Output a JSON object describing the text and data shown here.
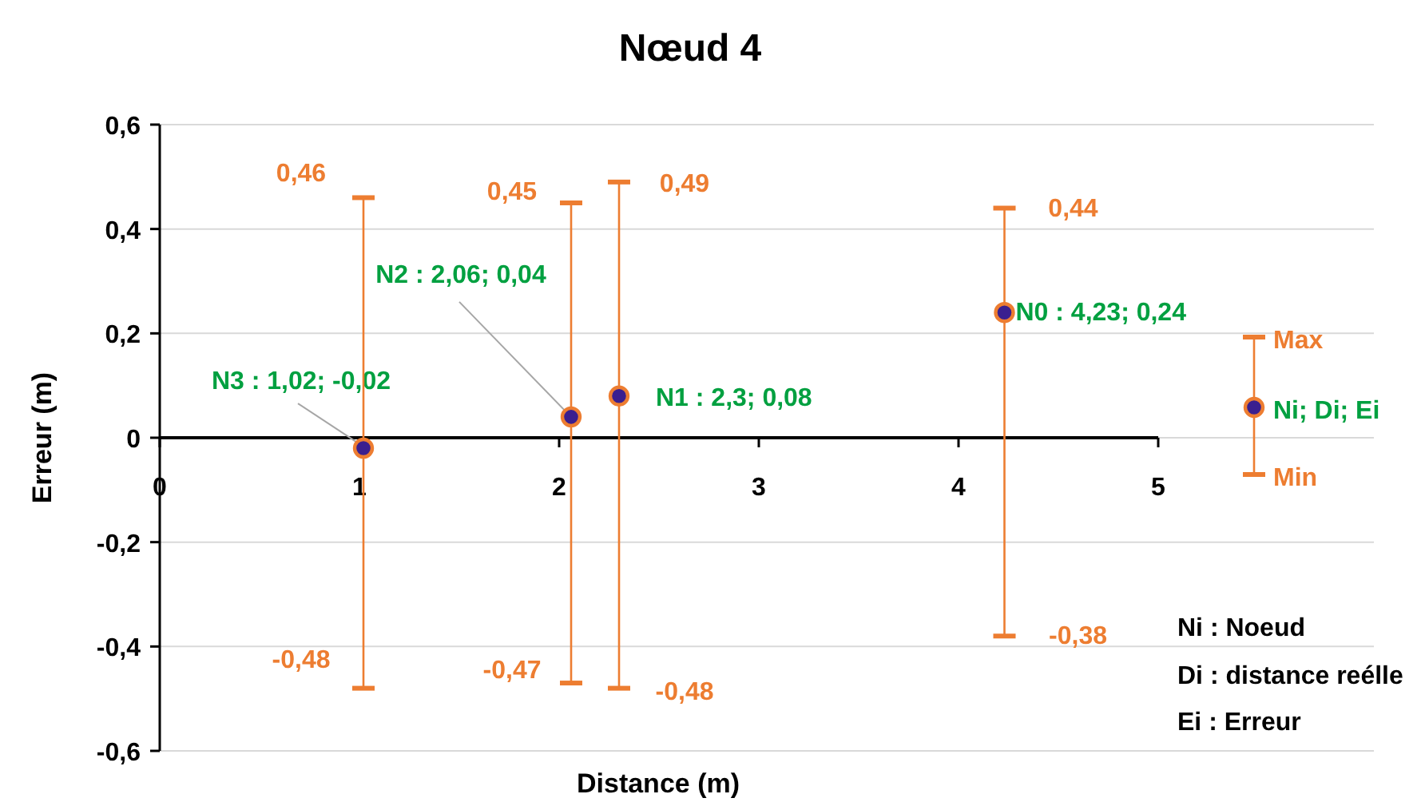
{
  "chart_data": {
    "type": "scatter",
    "title": "Nœud 4",
    "xlabel": "Distance (m)",
    "ylabel": "Erreur (m)",
    "xlim": [
      0,
      5
    ],
    "xticks": [
      0,
      1,
      2,
      3,
      4,
      5
    ],
    "ylim": [
      -0.6,
      0.6
    ],
    "yticks": [
      {
        "value": -0.6,
        "label": "-0,6"
      },
      {
        "value": -0.4,
        "label": "-0,4"
      },
      {
        "value": -0.2,
        "label": "-0,2"
      },
      {
        "value": 0,
        "label": "0"
      },
      {
        "value": 0.2,
        "label": "0,2"
      },
      {
        "value": 0.4,
        "label": "0,4"
      },
      {
        "value": 0.6,
        "label": "0,6"
      }
    ],
    "grid": "y",
    "marker": "circle",
    "series": [
      {
        "color": "#3a1f8f",
        "x": [
          4.23,
          2.3,
          2.06,
          1.02
        ],
        "values": [
          0.24,
          0.08,
          0.04,
          -0.02
        ],
        "errors": [
          [
            -0.38,
            0.44
          ],
          [
            -0.48,
            0.49
          ],
          [
            -0.47,
            0.45
          ],
          [
            -0.48,
            0.46
          ]
        ]
      }
    ],
    "annotations": [
      {
        "text": "0,46",
        "x": 1.02,
        "y": 0.46
      },
      {
        "text": "-0,48",
        "x": 1.02,
        "y": -0.48
      },
      {
        "text": "0,45",
        "x": 2.06,
        "y": 0.45
      },
      {
        "text": "-0,47",
        "x": 2.06,
        "y": -0.47
      },
      {
        "text": "0,49",
        "x": 2.3,
        "y": 0.49
      },
      {
        "text": "-0,48",
        "x": 2.3,
        "y": -0.48
      },
      {
        "text": "0,44",
        "x": 4.23,
        "y": 0.44
      },
      {
        "text": "-0,38",
        "x": 4.23,
        "y": -0.38
      },
      {
        "text": "N0 : 4,23; 0,24",
        "x": 4.23,
        "y": 0.24
      },
      {
        "text": "N1 : 2,3; 0,08",
        "x": 2.3,
        "y": 0.08
      },
      {
        "text": "N2 : 2,06; 0,04",
        "x": 2.06,
        "y": 0.04
      },
      {
        "text": "N3 : 1,02; -0,02",
        "x": 1.02,
        "y": -0.02
      },
      "Max",
      "Ni; Di; Ei",
      "Min",
      "Ni : Noeud",
      "Di : distance reélle",
      "Ei : Erreur"
    ]
  }
}
